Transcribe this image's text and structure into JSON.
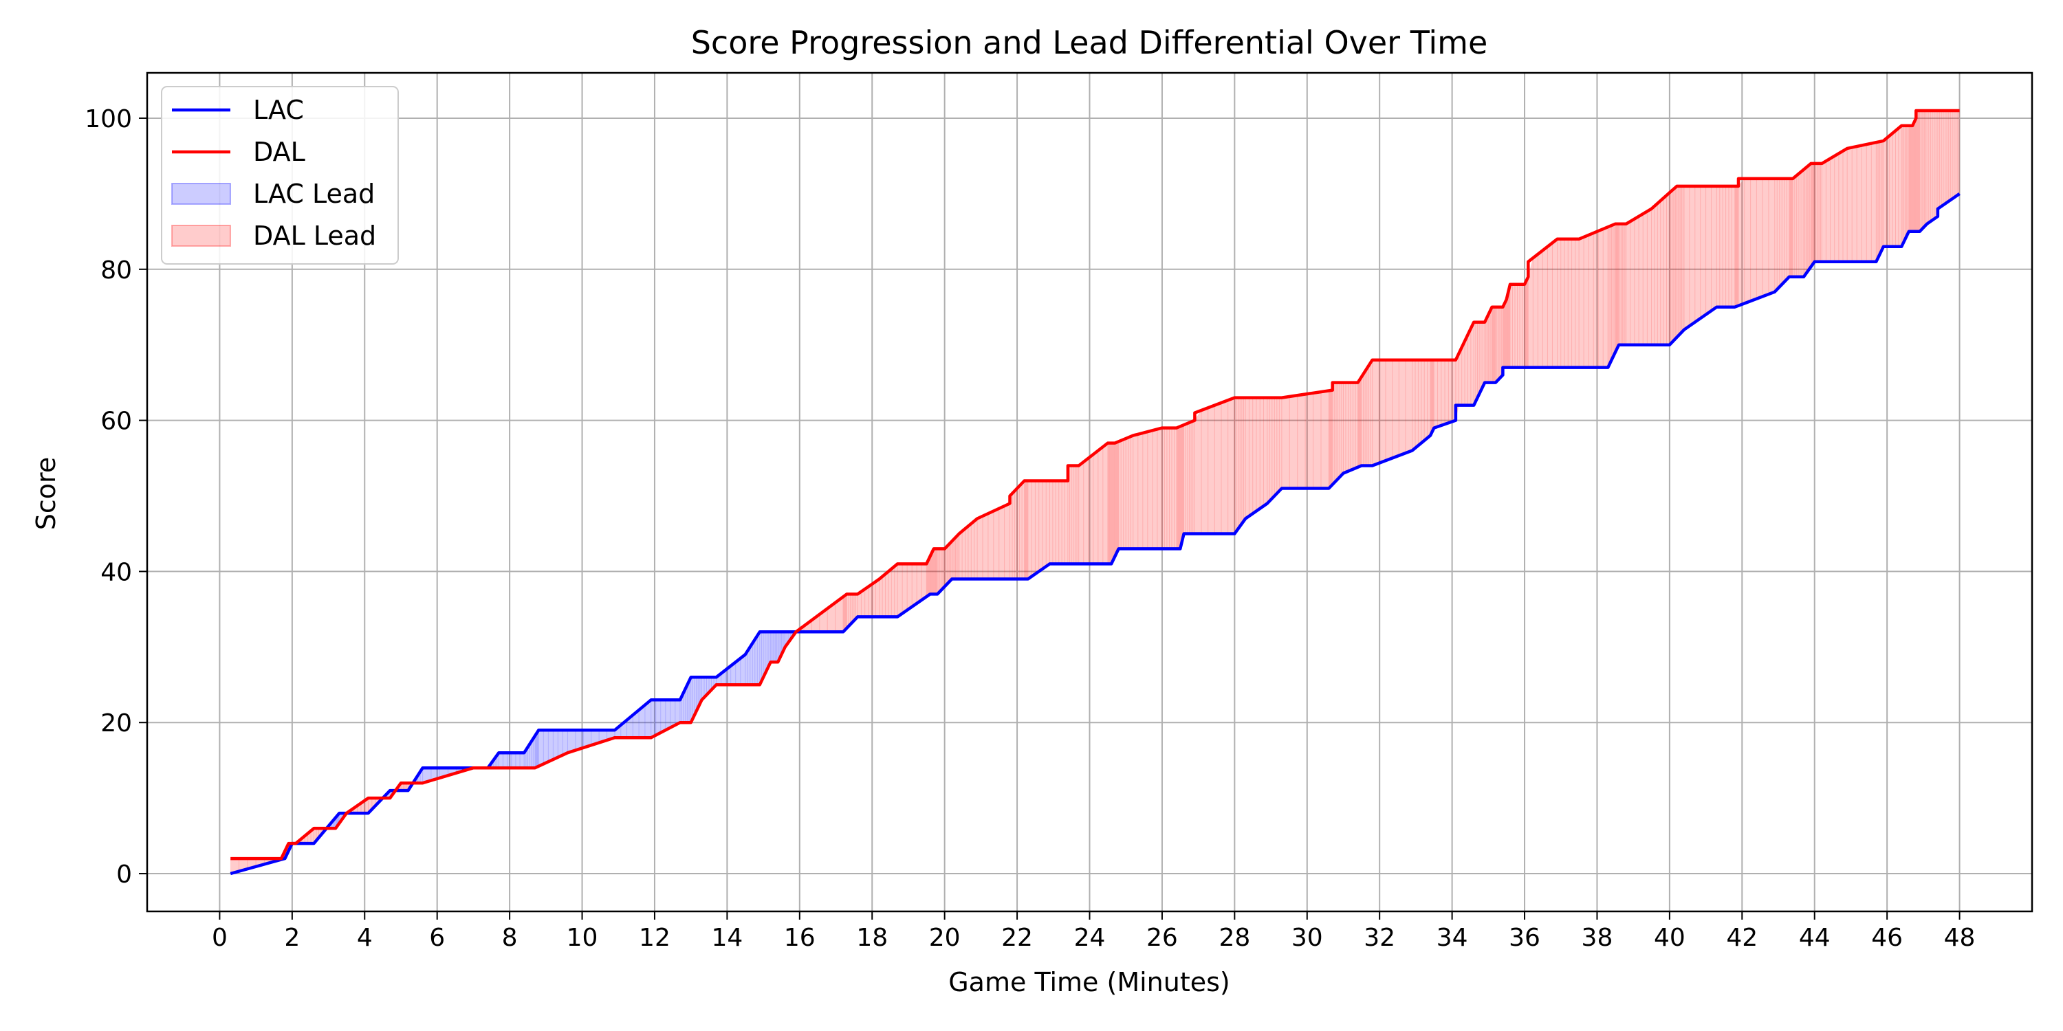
{
  "chart_data": {
    "type": "line",
    "title": "Score Progression and Lead Differential Over Time",
    "xlabel": "Game Time (Minutes)",
    "ylabel": "Score",
    "xlim": [
      -2,
      50
    ],
    "ylim": [
      -5,
      106
    ],
    "xticks": [
      0,
      2,
      4,
      6,
      8,
      10,
      12,
      14,
      16,
      18,
      20,
      22,
      24,
      26,
      28,
      30,
      32,
      34,
      36,
      38,
      40,
      42,
      44,
      46,
      48
    ],
    "yticks": [
      0,
      20,
      40,
      60,
      80,
      100
    ],
    "grid": true,
    "legend_position": "upper-left",
    "series": [
      {
        "name": "LAC",
        "color": "#0000ff",
        "points": [
          [
            0.3,
            0
          ],
          [
            1.8,
            2
          ],
          [
            2.0,
            4
          ],
          [
            2.6,
            4
          ],
          [
            3.3,
            8
          ],
          [
            4.1,
            8
          ],
          [
            4.7,
            11
          ],
          [
            5.2,
            11
          ],
          [
            5.6,
            14
          ],
          [
            7.4,
            14
          ],
          [
            7.7,
            16
          ],
          [
            8.4,
            16
          ],
          [
            8.8,
            19
          ],
          [
            10.9,
            19
          ],
          [
            11.9,
            23
          ],
          [
            12.7,
            23
          ],
          [
            13.0,
            26
          ],
          [
            13.7,
            26
          ],
          [
            14.5,
            29
          ],
          [
            14.9,
            32
          ],
          [
            17.2,
            32
          ],
          [
            17.6,
            34
          ],
          [
            18.7,
            34
          ],
          [
            19.6,
            37
          ],
          [
            19.8,
            37
          ],
          [
            20.2,
            39
          ],
          [
            22.3,
            39
          ],
          [
            22.9,
            41
          ],
          [
            24.6,
            41
          ],
          [
            24.8,
            43
          ],
          [
            26.5,
            43
          ],
          [
            26.6,
            45
          ],
          [
            28.0,
            45
          ],
          [
            28.3,
            47
          ],
          [
            28.9,
            49
          ],
          [
            29.3,
            51
          ],
          [
            30.6,
            51
          ],
          [
            31.0,
            53
          ],
          [
            31.5,
            54
          ],
          [
            31.8,
            54
          ],
          [
            32.9,
            56
          ],
          [
            33.4,
            58
          ],
          [
            33.5,
            59
          ],
          [
            34.1,
            60
          ],
          [
            34.1,
            62
          ],
          [
            34.6,
            62
          ],
          [
            34.9,
            65
          ],
          [
            35.2,
            65
          ],
          [
            35.4,
            66
          ],
          [
            35.4,
            67
          ],
          [
            38.3,
            67
          ],
          [
            38.6,
            70
          ],
          [
            40.0,
            70
          ],
          [
            40.4,
            72
          ],
          [
            41.3,
            75
          ],
          [
            41.8,
            75
          ],
          [
            42.9,
            77
          ],
          [
            43.3,
            79
          ],
          [
            43.7,
            79
          ],
          [
            44.0,
            81
          ],
          [
            45.7,
            81
          ],
          [
            45.9,
            83
          ],
          [
            46.4,
            83
          ],
          [
            46.6,
            85
          ],
          [
            46.9,
            85
          ],
          [
            47.1,
            86
          ],
          [
            47.4,
            87
          ],
          [
            47.4,
            88
          ],
          [
            47.7,
            89
          ],
          [
            48.0,
            90
          ]
        ]
      },
      {
        "name": "DAL",
        "color": "#ff0000",
        "points": [
          [
            0.3,
            2
          ],
          [
            1.7,
            2
          ],
          [
            1.9,
            4
          ],
          [
            2.1,
            4
          ],
          [
            2.6,
            6
          ],
          [
            3.0,
            6
          ],
          [
            3.2,
            6
          ],
          [
            3.5,
            8
          ],
          [
            4.1,
            10
          ],
          [
            4.7,
            10
          ],
          [
            5.0,
            12
          ],
          [
            5.6,
            12
          ],
          [
            7.0,
            14
          ],
          [
            8.7,
            14
          ],
          [
            9.6,
            16
          ],
          [
            10.9,
            18
          ],
          [
            11.9,
            18
          ],
          [
            12.7,
            20
          ],
          [
            13.0,
            20
          ],
          [
            13.3,
            23
          ],
          [
            13.7,
            25
          ],
          [
            14.9,
            25
          ],
          [
            15.2,
            28
          ],
          [
            15.4,
            28
          ],
          [
            15.6,
            30
          ],
          [
            15.9,
            32
          ],
          [
            17.3,
            37
          ],
          [
            17.6,
            37
          ],
          [
            18.2,
            39
          ],
          [
            18.7,
            41
          ],
          [
            19.5,
            41
          ],
          [
            19.7,
            43
          ],
          [
            20.0,
            43
          ],
          [
            20.4,
            45
          ],
          [
            20.9,
            47
          ],
          [
            21.8,
            49
          ],
          [
            21.8,
            50
          ],
          [
            22.2,
            52
          ],
          [
            23.4,
            52
          ],
          [
            23.4,
            54
          ],
          [
            23.7,
            54
          ],
          [
            24.5,
            57
          ],
          [
            24.7,
            57
          ],
          [
            25.2,
            58
          ],
          [
            26.0,
            59
          ],
          [
            26.4,
            59
          ],
          [
            26.9,
            60
          ],
          [
            26.9,
            61
          ],
          [
            28.0,
            63
          ],
          [
            29.3,
            63
          ],
          [
            30.7,
            64
          ],
          [
            30.7,
            65
          ],
          [
            31.4,
            65
          ],
          [
            31.8,
            68
          ],
          [
            34.1,
            68
          ],
          [
            34.6,
            73
          ],
          [
            34.9,
            73
          ],
          [
            35.1,
            75
          ],
          [
            35.4,
            75
          ],
          [
            35.5,
            76
          ],
          [
            35.6,
            78
          ],
          [
            36.0,
            78
          ],
          [
            36.1,
            79
          ],
          [
            36.1,
            81
          ],
          [
            36.9,
            84
          ],
          [
            37.5,
            84
          ],
          [
            38.5,
            86
          ],
          [
            38.8,
            86
          ],
          [
            39.5,
            88
          ],
          [
            40.2,
            91
          ],
          [
            41.9,
            91
          ],
          [
            41.9,
            92
          ],
          [
            43.4,
            92
          ],
          [
            43.9,
            94
          ],
          [
            44.2,
            94
          ],
          [
            44.9,
            96
          ],
          [
            45.9,
            97
          ],
          [
            46.4,
            99
          ],
          [
            46.7,
            99
          ],
          [
            46.8,
            100
          ],
          [
            46.8,
            101
          ],
          [
            48.0,
            101
          ]
        ]
      }
    ],
    "legend": [
      {
        "label": "LAC",
        "kind": "line",
        "color": "#0000ff"
      },
      {
        "label": "DAL",
        "kind": "line",
        "color": "#ff0000"
      },
      {
        "label": "LAC Lead",
        "kind": "fill",
        "color": "#0000ff"
      },
      {
        "label": "DAL Lead",
        "kind": "fill",
        "color": "#ff0000"
      }
    ]
  }
}
